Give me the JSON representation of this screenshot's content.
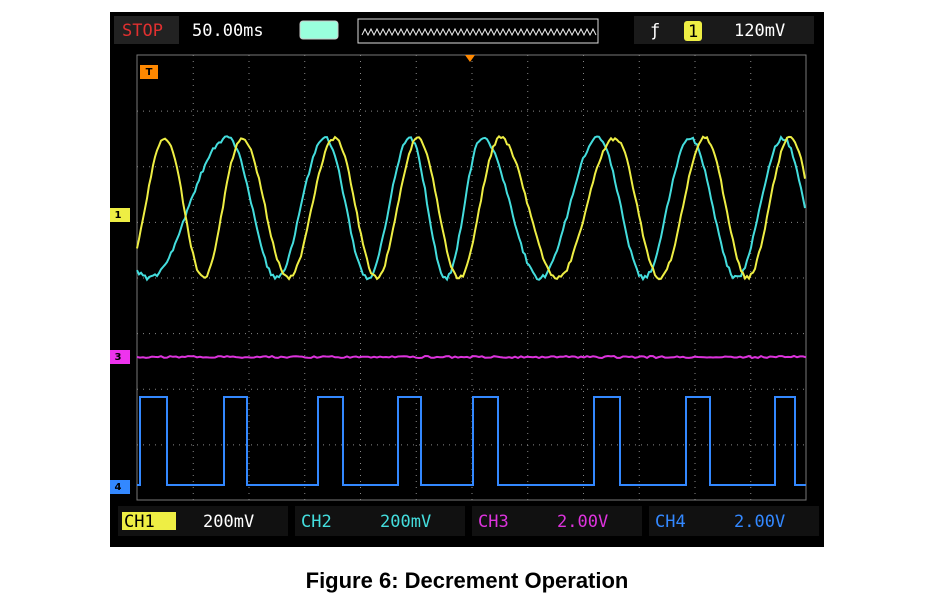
{
  "header": {
    "status": "STOP",
    "timebase": "50.00ms",
    "trigger_source": "1",
    "trigger_level": "120mV"
  },
  "markers": {
    "trigger": "T",
    "ch1": "1",
    "ch3": "3",
    "ch4": "4"
  },
  "channels": [
    {
      "name": "CH1",
      "scale": "200mV"
    },
    {
      "name": "CH2",
      "scale": "200mV"
    },
    {
      "name": "CH3",
      "scale": "2.00V"
    },
    {
      "name": "CH4",
      "scale": "2.00V"
    }
  ],
  "caption": "Figure 6: Decrement Operation"
}
